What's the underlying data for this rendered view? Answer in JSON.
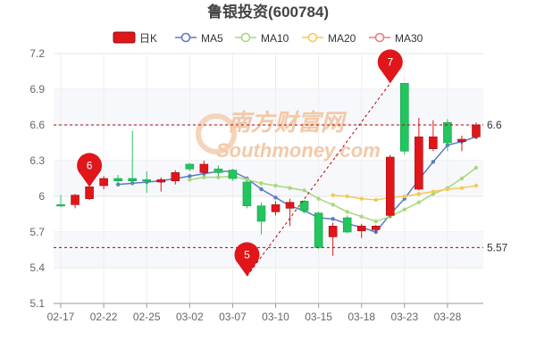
{
  "page": {
    "title": "鲁银投资(600784)"
  },
  "legend": [
    {
      "label": "日K",
      "icon": "candle-legend-icon",
      "color": "#e0161a"
    },
    {
      "label": "MA5",
      "icon": "circle-line-icon",
      "color": "#5b7bc2"
    },
    {
      "label": "MA10",
      "icon": "circle-line-icon",
      "color": "#a8d87c"
    },
    {
      "label": "MA20",
      "icon": "circle-line-icon",
      "color": "#f5c855"
    },
    {
      "label": "MA30",
      "icon": "circle-line-icon",
      "color": "#ef7b7b"
    }
  ],
  "watermark": {
    "cn": "南方财富网",
    "en": "Southmoney.com"
  },
  "colors": {
    "up": "#e0161a",
    "down": "#22c55e",
    "ref": "#b40000"
  },
  "chart_data": {
    "type": "candlestick",
    "ylim": [
      5.1,
      7.2
    ],
    "yticks": [
      "7.2",
      "6.9",
      "6.6",
      "6.3",
      "6",
      "5.7",
      "5.4",
      "5.1"
    ],
    "yticks_values": [
      7.2,
      6.9,
      6.6,
      6.3,
      6.0,
      5.7,
      5.4,
      5.1
    ],
    "xticks": [
      "02-17",
      "02-22",
      "02-25",
      "03-02",
      "03-07",
      "03-10",
      "03-15",
      "03-18",
      "03-23",
      "03-28"
    ],
    "xticks_index": [
      0,
      3,
      6,
      9,
      12,
      15,
      18,
      21,
      24,
      27
    ],
    "grid": true,
    "reference_lines": [
      {
        "value": 6.6,
        "label": "6.6"
      },
      {
        "value": 5.57,
        "label": "5.57"
      }
    ],
    "markers": [
      {
        "label": "6",
        "index": 2,
        "value": 6.08
      },
      {
        "label": "7",
        "index": 23,
        "value": 6.95
      },
      {
        "label": "5",
        "index": 13,
        "value": 5.33
      }
    ],
    "trend_line": {
      "from": {
        "index": 13,
        "value": 5.33
      },
      "to": {
        "index": 23,
        "value": 6.95
      }
    },
    "candles": [
      {
        "open": 5.93,
        "close": 5.92,
        "high": 6.01,
        "low": 5.91
      },
      {
        "open": 5.93,
        "close": 6.01,
        "high": 6.02,
        "low": 5.9
      },
      {
        "open": 5.98,
        "close": 6.08,
        "high": 6.09,
        "low": 5.97
      },
      {
        "open": 6.09,
        "close": 6.15,
        "high": 6.17,
        "low": 6.06
      },
      {
        "open": 6.15,
        "close": 6.13,
        "high": 6.18,
        "low": 6.1
      },
      {
        "open": 6.15,
        "close": 6.13,
        "high": 6.55,
        "low": 6.1
      },
      {
        "open": 6.14,
        "close": 6.13,
        "high": 6.21,
        "low": 6.03
      },
      {
        "open": 6.12,
        "close": 6.14,
        "high": 6.16,
        "low": 6.04
      },
      {
        "open": 6.13,
        "close": 6.2,
        "high": 6.22,
        "low": 6.1
      },
      {
        "open": 6.27,
        "close": 6.23,
        "high": 6.28,
        "low": 6.21
      },
      {
        "open": 6.2,
        "close": 6.27,
        "high": 6.3,
        "low": 6.19
      },
      {
        "open": 6.23,
        "close": 6.2,
        "high": 6.26,
        "low": 6.17
      },
      {
        "open": 6.22,
        "close": 6.15,
        "high": 6.23,
        "low": 6.13
      },
      {
        "open": 6.12,
        "close": 5.92,
        "high": 6.13,
        "low": 5.9
      },
      {
        "open": 5.92,
        "close": 5.79,
        "high": 5.95,
        "low": 5.68
      },
      {
        "open": 5.87,
        "close": 5.93,
        "high": 5.96,
        "low": 5.84
      },
      {
        "open": 5.9,
        "close": 5.95,
        "high": 5.98,
        "low": 5.75
      },
      {
        "open": 5.96,
        "close": 5.88,
        "high": 5.97,
        "low": 5.86
      },
      {
        "open": 5.86,
        "close": 5.57,
        "high": 5.87,
        "low": 5.56
      },
      {
        "open": 5.66,
        "close": 5.75,
        "high": 5.78,
        "low": 5.5
      },
      {
        "open": 5.82,
        "close": 5.7,
        "high": 5.84,
        "low": 5.69
      },
      {
        "open": 5.71,
        "close": 5.75,
        "high": 5.77,
        "low": 5.65
      },
      {
        "open": 5.72,
        "close": 5.75,
        "high": 5.76,
        "low": 5.7
      },
      {
        "open": 5.84,
        "close": 6.33,
        "high": 6.35,
        "low": 5.82
      },
      {
        "open": 6.95,
        "close": 6.38,
        "high": 6.95,
        "low": 6.35
      },
      {
        "open": 6.06,
        "close": 6.5,
        "high": 6.66,
        "low": 6.05
      },
      {
        "open": 6.4,
        "close": 6.5,
        "high": 6.64,
        "low": 6.38
      },
      {
        "open": 6.62,
        "close": 6.45,
        "high": 6.65,
        "low": 6.38
      },
      {
        "open": 6.46,
        "close": 6.48,
        "high": 6.51,
        "low": 6.38
      },
      {
        "open": 6.5,
        "close": 6.6,
        "high": 6.62,
        "low": 6.48
      }
    ],
    "series": [
      {
        "name": "MA5",
        "color": "#5b7bc2",
        "values": [
          null,
          null,
          null,
          null,
          6.1,
          6.11,
          6.12,
          6.13,
          6.15,
          6.17,
          6.19,
          6.21,
          6.21,
          6.15,
          6.06,
          5.99,
          5.92,
          5.88,
          5.82,
          5.81,
          5.77,
          5.74,
          5.7,
          5.85,
          5.98,
          6.14,
          6.29,
          6.43,
          6.46,
          6.5
        ]
      },
      {
        "name": "MA10",
        "color": "#a8d87c",
        "values": [
          null,
          null,
          null,
          null,
          null,
          null,
          null,
          null,
          null,
          6.14,
          6.16,
          6.16,
          6.17,
          6.14,
          6.11,
          6.09,
          6.07,
          6.05,
          5.98,
          5.93,
          5.87,
          5.83,
          5.79,
          5.83,
          5.89,
          5.95,
          6.02,
          6.07,
          6.15,
          6.24
        ]
      },
      {
        "name": "MA20",
        "color": "#f5c855",
        "values": [
          null,
          null,
          null,
          null,
          null,
          null,
          null,
          null,
          null,
          null,
          null,
          null,
          null,
          null,
          null,
          null,
          null,
          null,
          null,
          6.01,
          6.0,
          5.98,
          5.97,
          5.99,
          6.0,
          6.02,
          6.04,
          6.06,
          6.07,
          6.09
        ]
      },
      {
        "name": "MA30",
        "color": "#ef7b7b",
        "values": []
      }
    ]
  }
}
